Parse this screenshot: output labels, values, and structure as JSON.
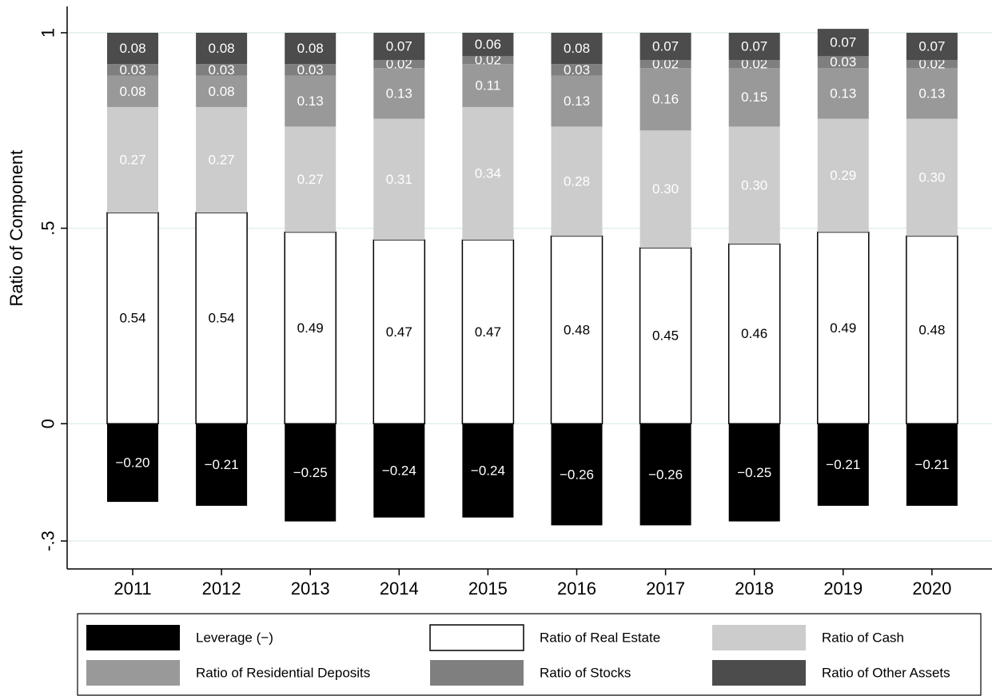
{
  "chart_data": {
    "type": "bar",
    "stacked": true,
    "categories": [
      "2011",
      "2012",
      "2013",
      "2014",
      "2015",
      "2016",
      "2017",
      "2018",
      "2019",
      "2020"
    ],
    "ylabel": "Ratio of Component",
    "xlabel": "",
    "ylim": [
      -0.3,
      1
    ],
    "yticks": [
      {
        "value": 1,
        "label": "1"
      },
      {
        "value": 0.5,
        "label": ".5"
      },
      {
        "value": 0,
        "label": "0"
      },
      {
        "value": -0.3,
        "label": "-.3"
      }
    ],
    "grid": true,
    "legend_position": "bottom",
    "series": [
      {
        "name": "Leverage (−)",
        "color": "#000000",
        "label_color": "#ffffff",
        "values": [
          -0.2,
          -0.21,
          -0.25,
          -0.24,
          -0.24,
          -0.26,
          -0.26,
          -0.25,
          -0.21,
          -0.21
        ],
        "labels": [
          "−0.20",
          "−0.21",
          "−0.25",
          "−0.24",
          "−0.24",
          "−0.26",
          "−0.26",
          "−0.25",
          "−0.21",
          "−0.21"
        ]
      },
      {
        "name": "Ratio of Real Estate",
        "color": "#ffffff",
        "label_color": "#000000",
        "values": [
          0.54,
          0.54,
          0.49,
          0.47,
          0.47,
          0.48,
          0.45,
          0.46,
          0.49,
          0.48
        ],
        "labels": [
          "0.54",
          "0.54",
          "0.49",
          "0.47",
          "0.47",
          "0.48",
          "0.45",
          "0.46",
          "0.49",
          "0.48"
        ]
      },
      {
        "name": "Ratio of Cash",
        "color": "#cccccc",
        "label_color": "#ffffff",
        "values": [
          0.27,
          0.27,
          0.27,
          0.31,
          0.34,
          0.28,
          0.3,
          0.3,
          0.29,
          0.3
        ],
        "labels": [
          "0.27",
          "0.27",
          "0.27",
          "0.31",
          "0.34",
          "0.28",
          "0.30",
          "0.30",
          "0.29",
          "0.30"
        ]
      },
      {
        "name": "Ratio of Residential Deposits",
        "color": "#999999",
        "label_color": "#ffffff",
        "values": [
          0.08,
          0.08,
          0.13,
          0.13,
          0.11,
          0.13,
          0.16,
          0.15,
          0.13,
          0.13
        ],
        "labels": [
          "0.08",
          "0.08",
          "0.13",
          "0.13",
          "0.11",
          "0.13",
          "0.16",
          "0.15",
          "0.13",
          "0.13"
        ]
      },
      {
        "name": "Ratio of Stocks",
        "color": "#7f7f7f",
        "label_color": "#ffffff",
        "values": [
          0.03,
          0.03,
          0.03,
          0.02,
          0.02,
          0.03,
          0.02,
          0.02,
          0.03,
          0.02
        ],
        "labels": [
          "0.03",
          "0.03",
          "0.03",
          "0.02",
          "0.02",
          "0.03",
          "0.02",
          "0.02",
          "0.03",
          "0.02"
        ]
      },
      {
        "name": "Ratio of Other Assets",
        "color": "#4c4c4c",
        "label_color": "#ffffff",
        "values": [
          0.08,
          0.08,
          0.08,
          0.07,
          0.06,
          0.08,
          0.07,
          0.07,
          0.07,
          0.07
        ],
        "labels": [
          "0.08",
          "0.08",
          "0.08",
          "0.07",
          "0.06",
          "0.08",
          "0.07",
          "0.07",
          "0.07",
          "0.07"
        ]
      }
    ]
  }
}
